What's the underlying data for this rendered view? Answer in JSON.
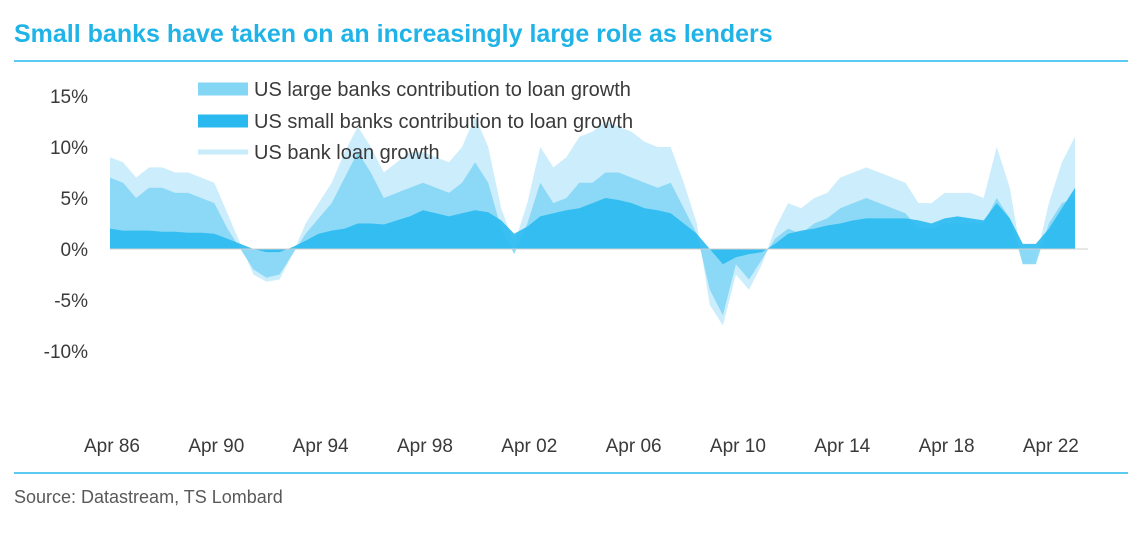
{
  "title": "Small banks have taken on an increasingly large role as lenders",
  "source": "Source: Datastream, TS Lombard",
  "chart_data": {
    "type": "area",
    "ylim": [
      -10,
      15
    ],
    "yticks": [
      15,
      10,
      5,
      0,
      -5,
      -10
    ],
    "ytick_labels": [
      "15%",
      "10%",
      "5%",
      "0%",
      "-5%",
      "-10%"
    ],
    "xlim": [
      1986.0,
      2023.5
    ],
    "xticks": [
      1986,
      1990,
      1994,
      1998,
      2002,
      2006,
      2010,
      2014,
      2018,
      2022
    ],
    "xtick_labels": [
      "Apr 86",
      "Apr 90",
      "Apr 94",
      "Apr 98",
      "Apr 02",
      "Apr 06",
      "Apr 10",
      "Apr 14",
      "Apr 18",
      "Apr 22"
    ],
    "grid": false,
    "legend": "top-left",
    "colors": {
      "large": "#84d6f5",
      "small": "#29b9ef",
      "loan": "#c9ecfb"
    },
    "series": [
      {
        "name": "US large banks contribution to loan growth",
        "style": "area",
        "x": [
          1986.0,
          1986.5,
          1987.0,
          1987.5,
          1988.0,
          1988.5,
          1989.0,
          1989.5,
          1990.0,
          1990.5,
          1991.0,
          1991.5,
          1992.0,
          1992.5,
          1993.0,
          1993.5,
          1994.0,
          1994.5,
          1995.0,
          1995.5,
          1996.0,
          1996.5,
          1997.0,
          1997.5,
          1998.0,
          1998.5,
          1999.0,
          1999.5,
          2000.0,
          2000.5,
          2001.0,
          2001.5,
          2002.0,
          2002.5,
          2003.0,
          2003.5,
          2004.0,
          2004.5,
          2005.0,
          2005.5,
          2006.0,
          2006.5,
          2007.0,
          2007.5,
          2008.0,
          2008.5,
          2009.0,
          2009.5,
          2010.0,
          2010.5,
          2011.0,
          2011.5,
          2012.0,
          2012.5,
          2013.0,
          2013.5,
          2014.0,
          2014.5,
          2015.0,
          2015.5,
          2016.0,
          2016.5,
          2017.0,
          2017.5,
          2018.0,
          2018.5,
          2019.0,
          2019.5,
          2020.0,
          2020.5,
          2021.0,
          2021.5,
          2022.0,
          2022.5,
          2023.0
        ],
        "values": [
          7.0,
          6.5,
          5.0,
          6.0,
          6.0,
          5.5,
          5.5,
          5.0,
          4.5,
          2.0,
          0.0,
          -2.0,
          -2.8,
          -2.5,
          -0.5,
          1.5,
          3.0,
          4.5,
          7.0,
          9.5,
          7.5,
          5.0,
          5.5,
          6.0,
          6.5,
          6.0,
          5.5,
          6.5,
          8.5,
          6.5,
          2.0,
          -0.5,
          2.5,
          6.5,
          4.5,
          5.0,
          6.5,
          6.5,
          7.5,
          7.5,
          7.0,
          6.5,
          6.0,
          6.5,
          4.0,
          1.5,
          -4.0,
          -6.5,
          -1.5,
          -3.0,
          -1.0,
          1.0,
          2.0,
          1.5,
          2.5,
          3.0,
          4.0,
          4.5,
          5.0,
          4.5,
          4.0,
          3.5,
          2.0,
          2.0,
          2.5,
          2.5,
          2.5,
          2.5,
          5.0,
          3.0,
          -1.5,
          -1.5,
          2.5,
          4.5,
          5.0
        ]
      },
      {
        "name": "US small banks contribution to loan growth",
        "style": "area",
        "x": [
          1986.0,
          1986.5,
          1987.0,
          1987.5,
          1988.0,
          1988.5,
          1989.0,
          1989.5,
          1990.0,
          1990.5,
          1991.0,
          1991.5,
          1992.0,
          1992.5,
          1993.0,
          1993.5,
          1994.0,
          1994.5,
          1995.0,
          1995.5,
          1996.0,
          1996.5,
          1997.0,
          1997.5,
          1998.0,
          1998.5,
          1999.0,
          1999.5,
          2000.0,
          2000.5,
          2001.0,
          2001.5,
          2002.0,
          2002.5,
          2003.0,
          2003.5,
          2004.0,
          2004.5,
          2005.0,
          2005.5,
          2006.0,
          2006.5,
          2007.0,
          2007.5,
          2008.0,
          2008.5,
          2009.0,
          2009.5,
          2010.0,
          2010.5,
          2011.0,
          2011.5,
          2012.0,
          2012.5,
          2013.0,
          2013.5,
          2014.0,
          2014.5,
          2015.0,
          2015.5,
          2016.0,
          2016.5,
          2017.0,
          2017.5,
          2018.0,
          2018.5,
          2019.0,
          2019.5,
          2020.0,
          2020.5,
          2021.0,
          2021.5,
          2022.0,
          2022.5,
          2023.0
        ],
        "values": [
          2.0,
          1.8,
          1.8,
          1.8,
          1.7,
          1.7,
          1.6,
          1.6,
          1.5,
          1.0,
          0.5,
          0.0,
          -0.3,
          -0.3,
          0.2,
          0.8,
          1.5,
          1.8,
          2.0,
          2.5,
          2.5,
          2.4,
          2.8,
          3.2,
          3.8,
          3.5,
          3.2,
          3.5,
          3.8,
          3.6,
          2.8,
          1.5,
          2.2,
          3.2,
          3.5,
          3.8,
          4.0,
          4.5,
          5.0,
          4.8,
          4.5,
          4.0,
          3.8,
          3.5,
          2.5,
          1.5,
          0.0,
          -1.5,
          -0.8,
          -0.5,
          -0.3,
          0.5,
          1.5,
          1.8,
          2.0,
          2.3,
          2.5,
          2.8,
          3.0,
          3.0,
          3.0,
          3.0,
          2.8,
          2.5,
          3.0,
          3.2,
          3.0,
          2.8,
          4.5,
          3.0,
          0.5,
          0.5,
          2.0,
          4.0,
          6.0
        ]
      },
      {
        "name": "US bank loan growth",
        "style": "area",
        "x": [
          1986.0,
          1986.5,
          1987.0,
          1987.5,
          1988.0,
          1988.5,
          1989.0,
          1989.5,
          1990.0,
          1990.5,
          1991.0,
          1991.5,
          1992.0,
          1992.5,
          1993.0,
          1993.5,
          1994.0,
          1994.5,
          1995.0,
          1995.5,
          1996.0,
          1996.5,
          1997.0,
          1997.5,
          1998.0,
          1998.5,
          1999.0,
          1999.5,
          2000.0,
          2000.5,
          2001.0,
          2001.5,
          2002.0,
          2002.5,
          2003.0,
          2003.5,
          2004.0,
          2004.5,
          2005.0,
          2005.5,
          2006.0,
          2006.5,
          2007.0,
          2007.5,
          2008.0,
          2008.5,
          2009.0,
          2009.5,
          2010.0,
          2010.5,
          2011.0,
          2011.5,
          2012.0,
          2012.5,
          2013.0,
          2013.5,
          2014.0,
          2014.5,
          2015.0,
          2015.5,
          2016.0,
          2016.5,
          2017.0,
          2017.5,
          2018.0,
          2018.5,
          2019.0,
          2019.5,
          2020.0,
          2020.5,
          2021.0,
          2021.5,
          2022.0,
          2022.5,
          2023.0
        ],
        "values": [
          9.0,
          8.5,
          7.0,
          8.0,
          8.0,
          7.5,
          7.5,
          7.0,
          6.5,
          3.5,
          0.5,
          -2.5,
          -3.2,
          -3.0,
          -0.5,
          2.5,
          4.5,
          6.5,
          9.5,
          12.0,
          10.0,
          7.5,
          8.5,
          9.5,
          9.5,
          9.0,
          8.5,
          10.0,
          13.0,
          10.0,
          4.0,
          0.5,
          4.5,
          10.0,
          8.0,
          9.0,
          11.0,
          11.5,
          12.5,
          12.0,
          11.5,
          10.5,
          10.0,
          10.0,
          6.5,
          2.5,
          -5.5,
          -7.5,
          -2.5,
          -4.0,
          -1.5,
          2.0,
          4.5,
          4.0,
          5.0,
          5.5,
          7.0,
          7.5,
          8.0,
          7.5,
          7.0,
          6.5,
          4.5,
          4.5,
          5.5,
          5.5,
          5.5,
          5.0,
          10.0,
          6.0,
          -1.5,
          -1.0,
          4.5,
          8.5,
          11.0
        ]
      }
    ]
  }
}
